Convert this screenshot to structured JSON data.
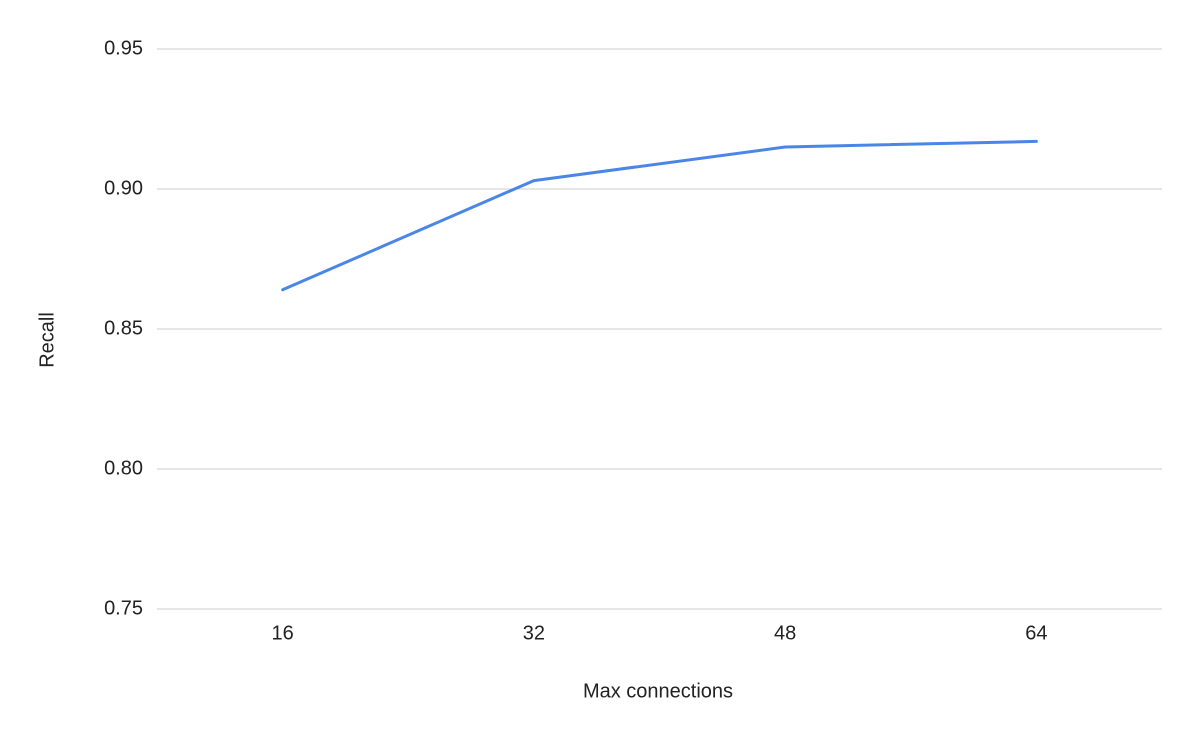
{
  "chart_data": {
    "type": "line",
    "x_label": "Max connections",
    "y_label": "Recall",
    "categories": [
      "16",
      "32",
      "48",
      "64"
    ],
    "series": [
      {
        "name": "Recall",
        "color": "#4a86e8",
        "values": [
          0.864,
          0.903,
          0.915,
          0.917
        ]
      }
    ],
    "ylim": [
      0.75,
      0.95
    ],
    "yticks": [
      0.75,
      {
        "value": 0.8,
        "label": "0.80"
      },
      0.85,
      {
        "value": 0.9,
        "label": "0.90"
      },
      0.95
    ],
    "grid": true
  }
}
